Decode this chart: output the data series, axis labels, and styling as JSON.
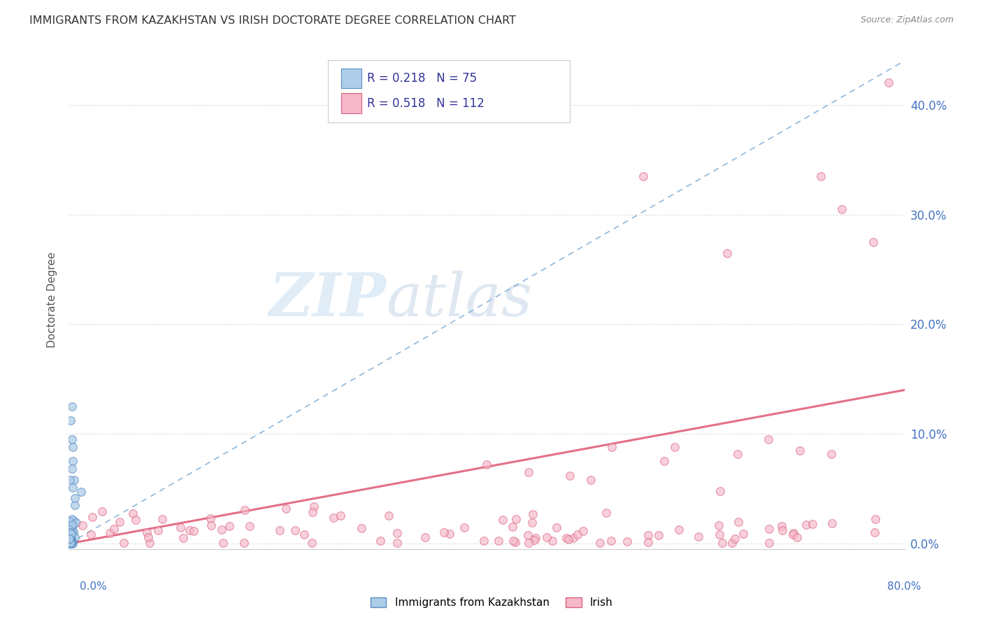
{
  "title": "IMMIGRANTS FROM KAZAKHSTAN VS IRISH DOCTORATE DEGREE CORRELATION CHART",
  "source": "Source: ZipAtlas.com",
  "ylabel": "Doctorate Degree",
  "xlabel_blue": "Immigrants from Kazakhstan",
  "xlabel_pink": "Irish",
  "xlabel_bottom_left": "0.0%",
  "xlabel_bottom_right": "80.0%",
  "ytick_labels": [
    "0.0%",
    "10.0%",
    "20.0%",
    "30.0%",
    "40.0%"
  ],
  "ytick_values": [
    0.0,
    0.1,
    0.2,
    0.3,
    0.4
  ],
  "xlim": [
    0.0,
    0.8
  ],
  "ylim": [
    -0.005,
    0.45
  ],
  "blue_R": 0.218,
  "blue_N": 75,
  "pink_R": 0.518,
  "pink_N": 112,
  "blue_color": "#aecde8",
  "blue_edge_color": "#5b8ec4",
  "blue_line_color": "#7aaad4",
  "pink_color": "#f5b8c8",
  "pink_edge_color": "#d96080",
  "pink_line_color": "#e0607a",
  "watermark_zip": "ZIP",
  "watermark_atlas": "atlas",
  "background_color": "#ffffff",
  "grid_color": "#dddddd",
  "title_color": "#333333",
  "source_color": "#888888",
  "ylabel_color": "#555555",
  "tick_color": "#4472c4",
  "legend_text_color": "#333399",
  "blue_line_x": [
    0.0,
    0.8
  ],
  "blue_line_y": [
    0.0,
    0.44
  ],
  "pink_line_x": [
    0.0,
    0.8
  ],
  "pink_line_y": [
    0.0,
    0.14
  ]
}
